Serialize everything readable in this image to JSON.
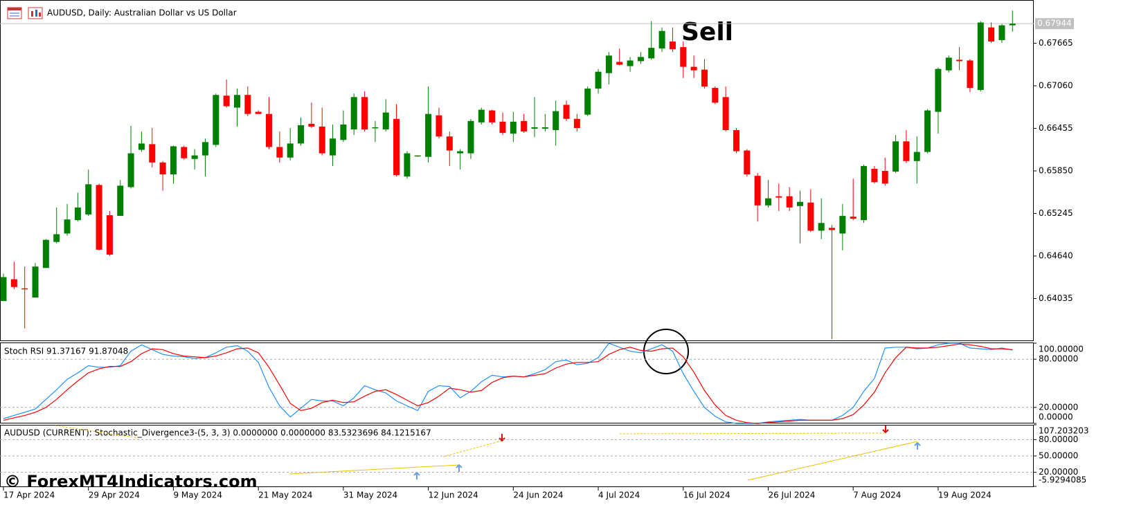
{
  "watermark": "© ForexMT4Indicators.com",
  "chart_data": [
    {
      "type": "candlestick",
      "title": "AUDUSD, Daily:  Australian Dollar vs US Dollar",
      "annotation": "Sell",
      "up_color": "#008000",
      "down_color": "#ff0000",
      "last_price": 0.67944,
      "ylim": [
        0.6344,
        0.6828
      ],
      "yticks": [
        0.67665,
        {
          "value": 0.6706,
          "label": "0.67060"
        },
        0.66455,
        {
          "value": 0.6585,
          "label": "0.65850"
        },
        0.65245,
        {
          "value": 0.6464,
          "label": "0.64640"
        },
        0.64035
      ],
      "xticks": [
        {
          "value": 0,
          "label": "17 Apr 2024"
        },
        {
          "value": 8,
          "label": "29 Apr 2024"
        },
        {
          "value": 16,
          "label": "9 May 2024"
        },
        {
          "value": 24,
          "label": "21 May 2024"
        },
        {
          "value": 32,
          "label": "31 May 2024"
        },
        {
          "value": 40,
          "label": "12 Jun 2024"
        },
        {
          "value": 48,
          "label": "24 Jun 2024"
        },
        {
          "value": 56,
          "label": "4 Jul 2024"
        },
        {
          "value": 64,
          "label": "16 Jul 2024"
        },
        {
          "value": 72,
          "label": "26 Jul 2024"
        },
        {
          "value": 80,
          "label": "7 Aug 2024"
        },
        {
          "value": 88,
          "label": "19 Aug 2024"
        }
      ],
      "open": [
        0.64,
        0.6431,
        0.6418,
        0.6405,
        0.6447,
        0.6484,
        0.6496,
        0.6515,
        0.6523,
        0.6565,
        0.6522,
        0.6521,
        0.6562,
        0.6615,
        0.6623,
        0.6597,
        0.658,
        0.6619,
        0.6602,
        0.6607,
        0.6622,
        0.6692,
        0.6675,
        0.6693,
        0.6669,
        0.6666,
        0.6619,
        0.6604,
        0.6624,
        0.6652,
        0.6648,
        0.6607,
        0.6629,
        0.6644,
        0.669,
        0.6646,
        0.6644,
        0.6659,
        0.6577,
        0.6606,
        0.6605,
        0.6664,
        0.6634,
        0.661,
        0.661,
        0.6654,
        0.6671,
        0.6655,
        0.6638,
        0.6656,
        0.6645,
        0.6645,
        0.6643,
        0.6679,
        0.6659,
        0.6665,
        0.6702,
        0.6724,
        0.674,
        0.6734,
        0.6741,
        0.6745,
        0.6759,
        0.6769,
        0.6761,
        0.6733,
        0.6729,
        0.6703,
        0.669,
        0.6643,
        0.6614,
        0.6578,
        0.6536,
        0.6549,
        0.6549,
        0.6535,
        0.654,
        0.65,
        0.6504,
        0.6496,
        0.652,
        0.6515,
        0.6588,
        0.6585,
        0.6584,
        0.6627,
        0.6599,
        0.6612,
        0.6669,
        0.6728,
        0.6743,
        0.6742,
        0.67,
        0.6789,
        0.6771,
        0.6792
      ],
      "high": [
        0.6439,
        0.6456,
        0.6449,
        0.6454,
        0.6488,
        0.6533,
        0.6538,
        0.6554,
        0.6587,
        0.6567,
        0.6528,
        0.6572,
        0.6649,
        0.6641,
        0.6646,
        0.6599,
        0.6621,
        0.6621,
        0.6616,
        0.6631,
        0.6695,
        0.6715,
        0.6702,
        0.6705,
        0.6671,
        0.669,
        0.6641,
        0.6646,
        0.6661,
        0.6682,
        0.6675,
        0.6651,
        0.6671,
        0.6695,
        0.6698,
        0.6656,
        0.6687,
        0.668,
        0.6613,
        0.6607,
        0.6705,
        0.6675,
        0.6641,
        0.6616,
        0.6659,
        0.6675,
        0.6672,
        0.6668,
        0.6669,
        0.6666,
        0.669,
        0.6666,
        0.6685,
        0.6685,
        0.6666,
        0.6705,
        0.673,
        0.6754,
        0.6759,
        0.6747,
        0.6754,
        0.6798,
        0.6789,
        0.6789,
        0.6769,
        0.6749,
        0.6744,
        0.6705,
        0.6705,
        0.6646,
        0.6616,
        0.6582,
        0.6572,
        0.6567,
        0.6562,
        0.6557,
        0.6559,
        0.6546,
        0.6508,
        0.6538,
        0.6574,
        0.6594,
        0.6592,
        0.6604,
        0.6636,
        0.6643,
        0.6634,
        0.6673,
        0.6732,
        0.6749,
        0.6761,
        0.6744,
        0.6798,
        0.6796,
        0.6794,
        0.6813
      ],
      "low": [
        0.64,
        0.6417,
        0.6361,
        0.6405,
        0.6447,
        0.6482,
        0.6493,
        0.6513,
        0.6521,
        0.6472,
        0.6464,
        0.6521,
        0.656,
        0.6612,
        0.659,
        0.6557,
        0.6567,
        0.6601,
        0.6587,
        0.6577,
        0.6619,
        0.6675,
        0.6648,
        0.6663,
        0.6666,
        0.6616,
        0.6597,
        0.66,
        0.6621,
        0.6646,
        0.6607,
        0.6592,
        0.6626,
        0.6636,
        0.6641,
        0.6626,
        0.6641,
        0.6577,
        0.6574,
        0.6605,
        0.6597,
        0.6631,
        0.6592,
        0.6587,
        0.6602,
        0.6651,
        0.6651,
        0.6636,
        0.6626,
        0.6639,
        0.6633,
        0.6641,
        0.6621,
        0.6656,
        0.6641,
        0.6663,
        0.6695,
        0.6708,
        0.6735,
        0.6726,
        0.6737,
        0.6743,
        0.6754,
        0.6754,
        0.6717,
        0.6717,
        0.6702,
        0.668,
        0.6641,
        0.661,
        0.6577,
        0.6513,
        0.6533,
        0.6528,
        0.6528,
        0.6482,
        0.6498,
        0.6488,
        0.6346,
        0.6472,
        0.6515,
        0.6511,
        0.6567,
        0.6564,
        0.6582,
        0.6596,
        0.6567,
        0.661,
        0.6638,
        0.6725,
        0.6728,
        0.6697,
        0.6698,
        0.6767,
        0.6767,
        0.6783
      ],
      "close": [
        0.6434,
        0.642,
        0.6417,
        0.6449,
        0.6487,
        0.6495,
        0.6516,
        0.6533,
        0.6566,
        0.6473,
        0.6466,
        0.6564,
        0.661,
        0.6624,
        0.6597,
        0.658,
        0.662,
        0.6603,
        0.6607,
        0.6626,
        0.6693,
        0.6677,
        0.6693,
        0.6666,
        0.6666,
        0.6619,
        0.6604,
        0.6624,
        0.665,
        0.6648,
        0.661,
        0.6631,
        0.6651,
        0.669,
        0.6644,
        0.6647,
        0.6668,
        0.6579,
        0.661,
        0.6607,
        0.6666,
        0.6634,
        0.6614,
        0.6613,
        0.6656,
        0.6672,
        0.6654,
        0.6639,
        0.6655,
        0.6641,
        0.6647,
        0.6647,
        0.667,
        0.6659,
        0.6646,
        0.6702,
        0.6726,
        0.6749,
        0.6736,
        0.6742,
        0.6747,
        0.676,
        0.6784,
        0.6758,
        0.6733,
        0.6728,
        0.6705,
        0.6682,
        0.6643,
        0.6613,
        0.658,
        0.6536,
        0.6546,
        0.6547,
        0.6533,
        0.6541,
        0.65,
        0.6511,
        0.6501,
        0.6521,
        0.6517,
        0.6592,
        0.6569,
        0.6567,
        0.6627,
        0.6599,
        0.6612,
        0.6671,
        0.673,
        0.6746,
        0.6741,
        0.6703,
        0.6796,
        0.6769,
        0.6792,
        0.67944
      ]
    },
    {
      "type": "line",
      "title": "Stoch RSI 91.37167 91.87048",
      "ylim": [
        0,
        100
      ],
      "yticks": [
        {
          "value": 100,
          "label": "100.00000"
        },
        {
          "value": 80,
          "label": "80.00000"
        },
        {
          "value": 20,
          "label": "20.00000"
        },
        {
          "value": 0,
          "label": "0.00000"
        }
      ],
      "series": [
        {
          "color": "#1e90ff",
          "values": [
            6,
            10,
            14,
            18,
            30,
            42,
            55,
            63,
            72,
            70,
            70,
            72,
            90,
            98,
            92,
            86,
            84,
            83,
            81,
            82,
            88,
            95,
            97,
            90,
            76,
            45,
            22,
            8,
            19,
            30,
            28,
            28,
            22,
            32,
            47,
            42,
            38,
            28,
            22,
            16,
            40,
            47,
            46,
            32,
            40,
            52,
            60,
            58,
            59,
            58,
            62,
            67,
            77,
            79,
            73,
            75,
            82,
            100,
            95,
            90,
            88,
            93,
            98,
            90,
            62,
            40,
            20,
            9,
            2,
            0,
            0,
            0,
            2,
            3,
            4,
            5,
            4,
            4,
            4,
            10,
            20,
            40,
            56,
            94,
            95,
            95,
            93,
            94,
            98,
            100,
            100,
            94,
            93,
            92,
            94,
            91.37167
          ]
        },
        {
          "color": "#ff0000",
          "values": [
            4,
            7,
            10,
            14,
            20,
            30,
            42,
            53,
            63,
            68,
            71,
            71,
            77,
            87,
            93,
            92,
            87,
            84,
            83,
            82,
            84,
            88,
            93,
            94,
            88,
            70,
            48,
            25,
            16,
            19,
            26,
            29,
            26,
            27,
            34,
            40,
            42,
            36,
            29,
            22,
            26,
            34,
            44,
            42,
            39,
            41,
            51,
            57,
            59,
            58,
            60,
            62,
            69,
            74,
            76,
            76,
            77,
            86,
            92,
            95,
            91,
            90,
            93,
            94,
            83,
            64,
            41,
            23,
            10,
            4,
            1,
            0,
            1,
            2,
            3,
            4,
            4,
            4,
            4,
            6,
            11,
            23,
            39,
            63,
            82,
            95,
            94,
            94,
            95,
            97,
            99,
            98,
            96,
            93,
            93,
            91.87048
          ]
        }
      ]
    },
    {
      "type": "indicator",
      "title": "AUDUSD (CURRENT): Stochastic_Divergence3-(5, 3, 3) 0.0000000 0.0000000 83.5323696 84.1215167",
      "ylim": [
        -5.9294085,
        107.203203
      ],
      "yticks": [
        107.203203,
        {
          "value": 80,
          "label": "80.00000"
        },
        {
          "value": 50,
          "label": "50.00000"
        },
        {
          "value": 20,
          "label": "20.00000"
        },
        -5.9294085
      ]
    }
  ]
}
